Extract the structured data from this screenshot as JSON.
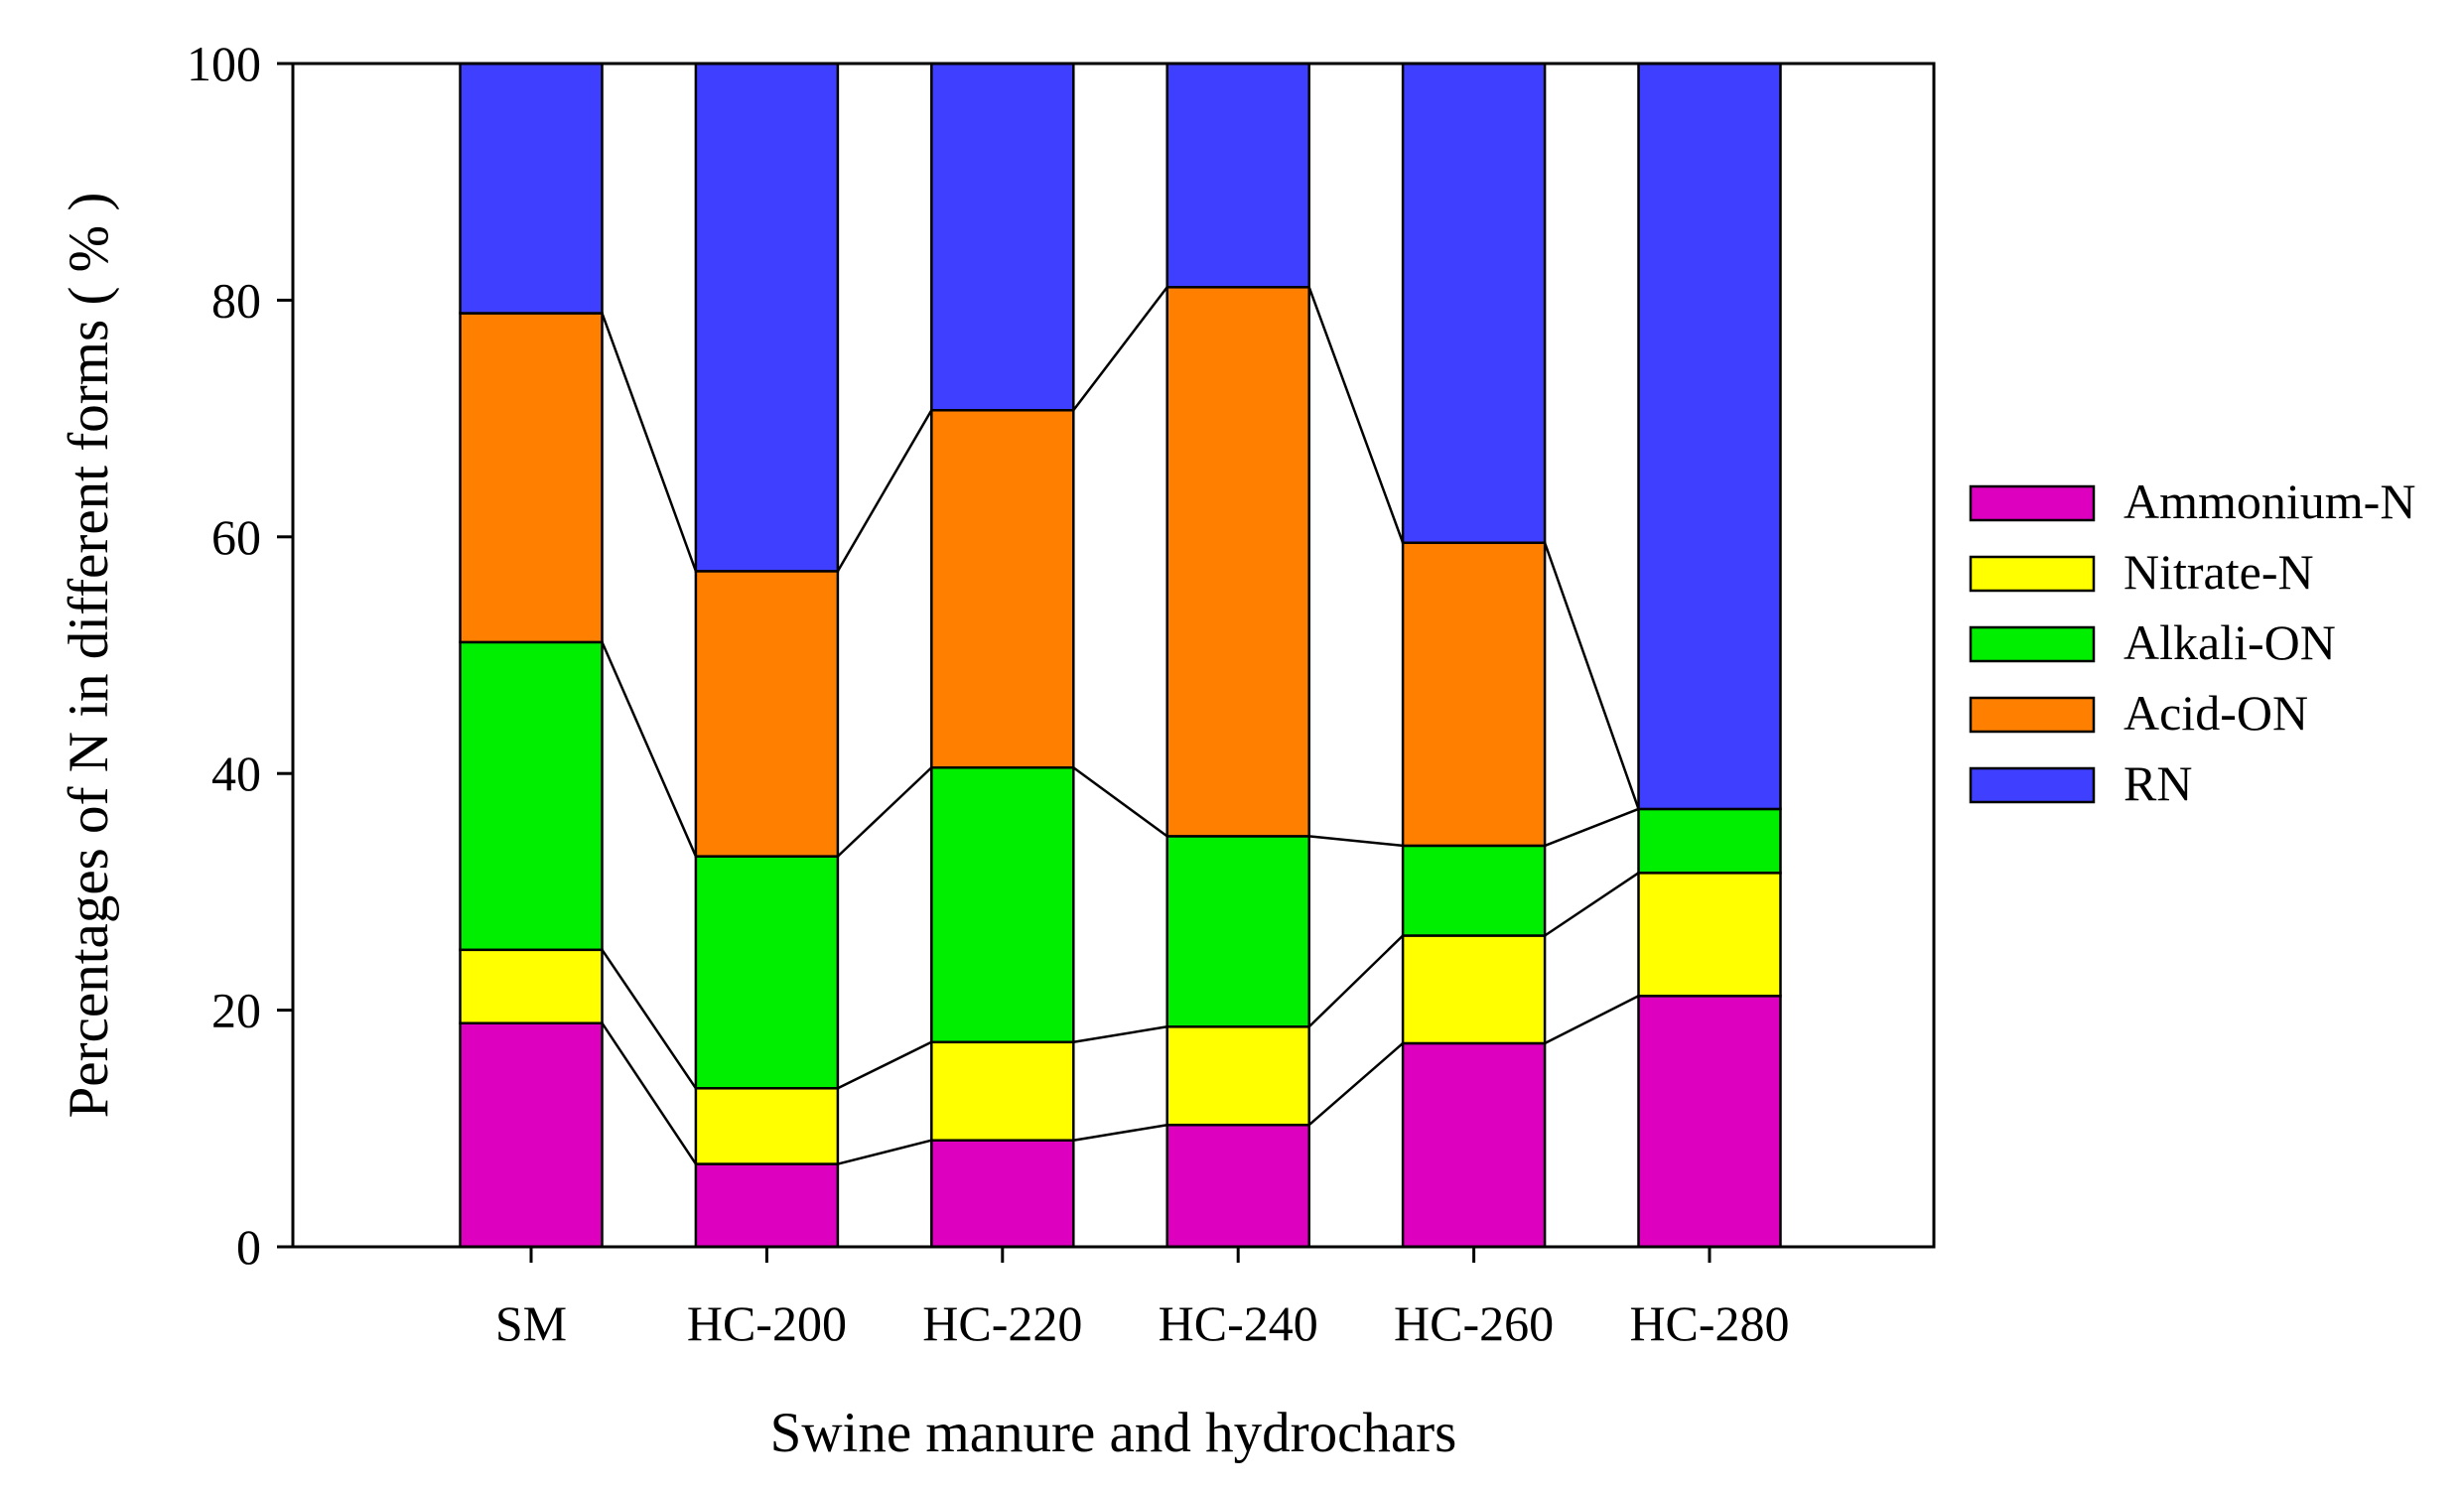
{
  "chart_data": {
    "type": "bar",
    "stacked": true,
    "title": "",
    "xlabel": "Swine manure and hydrochars",
    "ylabel": "Percentages of N in different forms ( % )",
    "ylim": [
      0,
      100
    ],
    "yticks": [
      0,
      20,
      40,
      60,
      80,
      100
    ],
    "grid": false,
    "legend_position": "right",
    "connector_lines": true,
    "categories": [
      "SM",
      "HC-200",
      "HC-220",
      "HC-240",
      "HC-260",
      "HC-280"
    ],
    "series": [
      {
        "name": "Ammonium-N",
        "color": "#DD00BF",
        "values": [
          18.9,
          7.0,
          9.0,
          10.3,
          17.2,
          21.2
        ]
      },
      {
        "name": "Nitrate-N",
        "color": "#FFFF00",
        "values": [
          6.2,
          6.4,
          8.3,
          8.3,
          9.1,
          10.4
        ]
      },
      {
        "name": "Alkali-ON",
        "color": "#00EE00",
        "values": [
          26.0,
          19.6,
          23.2,
          16.1,
          7.6,
          5.4
        ]
      },
      {
        "name": "Acid-ON",
        "color": "#FF8000",
        "values": [
          27.8,
          24.1,
          30.2,
          46.4,
          25.6,
          0.0
        ]
      },
      {
        "name": "RN",
        "color": "#3F3FFF",
        "values": [
          21.1,
          42.9,
          29.3,
          18.9,
          40.5,
          63.0
        ]
      }
    ]
  }
}
